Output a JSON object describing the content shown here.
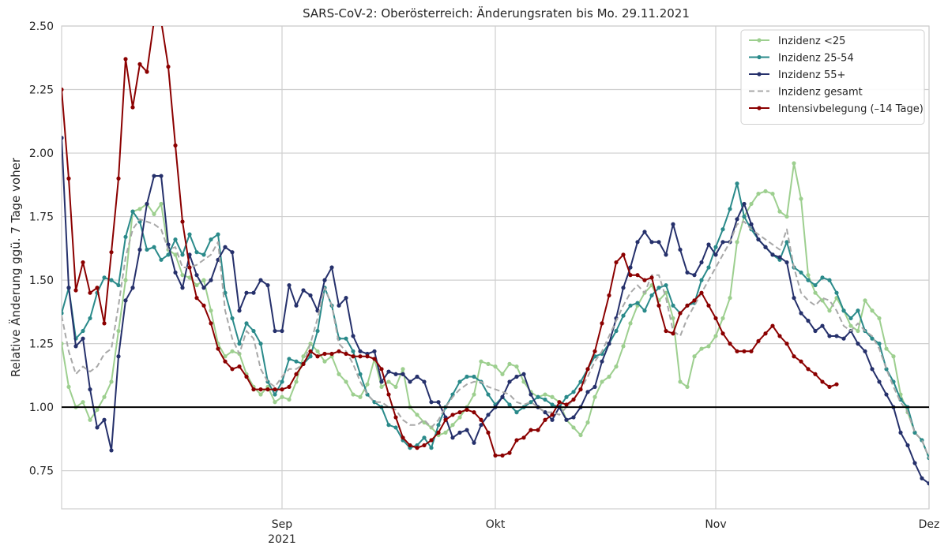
{
  "chart_data": {
    "type": "line",
    "title": "SARS-CoV-2: Oberösterreich: Änderungsraten bis Mo. 29.11.2021",
    "ylabel": "Relative Änderung ggü. 7 Tage voher",
    "xlabel": "",
    "x_start": "2021-08-01",
    "x_end": "2021-12-01",
    "xlim": [
      "2021-08-01",
      "2021-12-01"
    ],
    "ylim": [
      0.6,
      2.5
    ],
    "yticks": [
      0.75,
      1.0,
      1.25,
      1.5,
      1.75,
      2.0,
      2.25,
      2.5
    ],
    "ytick_labels": [
      "0.75",
      "1.00",
      "1.25",
      "1.50",
      "1.75",
      "2.00",
      "2.25",
      "2.50"
    ],
    "xticks": [
      {
        "date": "2021-09-01",
        "label": "Sep",
        "sublabel": "2021"
      },
      {
        "date": "2021-10-01",
        "label": "Okt",
        "sublabel": ""
      },
      {
        "date": "2021-11-01",
        "label": "Nov",
        "sublabel": ""
      },
      {
        "date": "2021-12-01",
        "label": "Dez",
        "sublabel": ""
      }
    ],
    "grid": true,
    "reference_line": 1.0,
    "legend_position": "top-right",
    "series": [
      {
        "name": "Inzidenz <25",
        "color": "#9dcf8f",
        "style": "solid-markers",
        "start": "2021-08-01",
        "values": [
          1.25,
          1.08,
          1.0,
          1.02,
          0.95,
          0.99,
          1.04,
          1.1,
          1.3,
          1.5,
          1.77,
          1.78,
          1.8,
          1.76,
          1.8,
          1.62,
          1.6,
          1.52,
          1.51,
          1.48,
          1.5,
          1.38,
          1.25,
          1.2,
          1.22,
          1.21,
          1.13,
          1.08,
          1.05,
          1.08,
          1.02,
          1.04,
          1.03,
          1.1,
          1.2,
          1.25,
          1.22,
          1.18,
          1.2,
          1.13,
          1.1,
          1.05,
          1.04,
          1.09,
          1.19,
          1.08,
          1.1,
          1.08,
          1.15,
          1.0,
          0.97,
          0.94,
          0.92,
          0.89,
          0.9,
          0.93,
          0.96,
          1.0,
          1.05,
          1.18,
          1.17,
          1.16,
          1.13,
          1.17,
          1.16,
          1.1,
          1.06,
          1.04,
          1.05,
          1.04,
          1.02,
          0.95,
          0.92,
          0.89,
          0.94,
          1.04,
          1.1,
          1.12,
          1.16,
          1.24,
          1.33,
          1.4,
          1.45,
          1.48,
          1.42,
          1.45,
          1.35,
          1.1,
          1.08,
          1.2,
          1.23,
          1.24,
          1.28,
          1.35,
          1.43,
          1.65,
          1.75,
          1.8,
          1.84,
          1.85,
          1.84,
          1.77,
          1.75,
          1.96,
          1.82,
          1.52,
          1.45,
          1.42,
          1.38,
          1.43,
          1.38,
          1.32,
          1.3,
          1.42,
          1.38,
          1.35,
          1.23,
          1.2,
          1.05,
          0.98,
          0.9,
          0.87,
          0.8,
          0.75,
          0.73
        ]
      },
      {
        "name": "Inzidenz 25-54",
        "color": "#2a8a8a",
        "style": "solid-markers",
        "start": "2021-08-01",
        "values": [
          1.37,
          1.47,
          1.27,
          1.3,
          1.35,
          1.45,
          1.51,
          1.5,
          1.48,
          1.67,
          1.77,
          1.73,
          1.62,
          1.63,
          1.58,
          1.6,
          1.66,
          1.6,
          1.68,
          1.61,
          1.6,
          1.66,
          1.68,
          1.45,
          1.35,
          1.25,
          1.33,
          1.3,
          1.25,
          1.1,
          1.05,
          1.1,
          1.19,
          1.18,
          1.17,
          1.2,
          1.3,
          1.47,
          1.4,
          1.27,
          1.27,
          1.22,
          1.13,
          1.05,
          1.02,
          1.0,
          0.93,
          0.92,
          0.87,
          0.84,
          0.85,
          0.88,
          0.84,
          0.93,
          1.0,
          1.05,
          1.1,
          1.12,
          1.12,
          1.1,
          1.05,
          1.01,
          1.04,
          1.01,
          0.98,
          1.0,
          1.02,
          1.04,
          1.03,
          1.01,
          1.0,
          1.04,
          1.06,
          1.1,
          1.15,
          1.2,
          1.21,
          1.25,
          1.3,
          1.36,
          1.4,
          1.41,
          1.38,
          1.44,
          1.47,
          1.48,
          1.4,
          1.37,
          1.4,
          1.41,
          1.5,
          1.55,
          1.63,
          1.7,
          1.78,
          1.88,
          1.75,
          1.7,
          1.66,
          1.63,
          1.6,
          1.58,
          1.65,
          1.55,
          1.53,
          1.5,
          1.48,
          1.51,
          1.5,
          1.45,
          1.38,
          1.35,
          1.38,
          1.3,
          1.27,
          1.25,
          1.15,
          1.1,
          1.03,
          1.0,
          0.9,
          0.87,
          0.8,
          0.75,
          0.72
        ]
      },
      {
        "name": "Inzidenz 55+",
        "color": "#25306b",
        "style": "solid-markers",
        "start": "2021-08-01",
        "values": [
          2.06,
          1.47,
          1.24,
          1.27,
          1.07,
          0.92,
          0.95,
          0.83,
          1.2,
          1.42,
          1.47,
          1.62,
          1.8,
          1.91,
          1.91,
          1.64,
          1.53,
          1.47,
          1.6,
          1.52,
          1.47,
          1.5,
          1.58,
          1.63,
          1.61,
          1.38,
          1.45,
          1.45,
          1.5,
          1.48,
          1.3,
          1.3,
          1.48,
          1.4,
          1.46,
          1.44,
          1.38,
          1.5,
          1.55,
          1.4,
          1.43,
          1.28,
          1.22,
          1.21,
          1.22,
          1.1,
          1.14,
          1.13,
          1.13,
          1.1,
          1.12,
          1.1,
          1.02,
          1.02,
          0.96,
          0.88,
          0.9,
          0.91,
          0.86,
          0.93,
          0.97,
          1.0,
          1.04,
          1.1,
          1.12,
          1.13,
          1.05,
          1.0,
          0.98,
          0.95,
          1.0,
          0.95,
          0.96,
          1.0,
          1.06,
          1.08,
          1.18,
          1.25,
          1.35,
          1.47,
          1.55,
          1.65,
          1.69,
          1.65,
          1.65,
          1.6,
          1.72,
          1.62,
          1.53,
          1.52,
          1.57,
          1.64,
          1.6,
          1.65,
          1.65,
          1.74,
          1.8,
          1.72,
          1.66,
          1.63,
          1.6,
          1.59,
          1.57,
          1.43,
          1.37,
          1.34,
          1.3,
          1.32,
          1.28,
          1.28,
          1.27,
          1.3,
          1.25,
          1.22,
          1.15,
          1.1,
          1.05,
          1.0,
          0.9,
          0.85,
          0.78,
          0.72,
          0.7
        ]
      },
      {
        "name": "Inzidenz gesamt",
        "color": "#a8a8a8",
        "style": "dashed",
        "start": "2021-08-01",
        "values": [
          1.36,
          1.22,
          1.13,
          1.16,
          1.14,
          1.16,
          1.21,
          1.23,
          1.4,
          1.59,
          1.7,
          1.74,
          1.73,
          1.72,
          1.7,
          1.62,
          1.63,
          1.55,
          1.55,
          1.56,
          1.58,
          1.6,
          1.65,
          1.38,
          1.27,
          1.21,
          1.3,
          1.27,
          1.15,
          1.1,
          1.08,
          1.12,
          1.15,
          1.15,
          1.17,
          1.25,
          1.35,
          1.47,
          1.4,
          1.25,
          1.22,
          1.17,
          1.1,
          1.05,
          1.02,
          1.02,
          1.0,
          0.99,
          0.95,
          0.93,
          0.93,
          0.95,
          0.92,
          0.95,
          1.0,
          1.04,
          1.07,
          1.09,
          1.1,
          1.1,
          1.08,
          1.07,
          1.06,
          1.05,
          1.02,
          1.01,
          1.02,
          1.0,
          0.98,
          0.98,
          0.97,
          1.0,
          1.03,
          1.07,
          1.12,
          1.18,
          1.22,
          1.28,
          1.34,
          1.4,
          1.45,
          1.48,
          1.45,
          1.52,
          1.52,
          1.43,
          1.3,
          1.28,
          1.35,
          1.4,
          1.45,
          1.5,
          1.55,
          1.6,
          1.65,
          1.72,
          1.73,
          1.7,
          1.68,
          1.66,
          1.64,
          1.62,
          1.7,
          1.55,
          1.45,
          1.42,
          1.4,
          1.43,
          1.42,
          1.38,
          1.32,
          1.3,
          1.33,
          1.3,
          1.28,
          1.23,
          1.15,
          1.08,
          1.02,
          0.98,
          0.9,
          0.87,
          0.8,
          0.75,
          0.73
        ]
      },
      {
        "name": "Intensivbelegung (–14 Tage)",
        "color": "#8b0000",
        "style": "solid-markers",
        "start": "2021-08-01",
        "values": [
          2.25,
          1.9,
          1.46,
          1.57,
          1.45,
          1.47,
          1.33,
          1.61,
          1.9,
          2.37,
          2.18,
          2.35,
          2.32,
          2.52,
          2.52,
          2.34,
          2.03,
          1.73,
          1.55,
          1.43,
          1.4,
          1.33,
          1.23,
          1.18,
          1.15,
          1.16,
          1.12,
          1.07,
          1.07,
          1.07,
          1.07,
          1.07,
          1.08,
          1.13,
          1.17,
          1.22,
          1.2,
          1.21,
          1.21,
          1.22,
          1.21,
          1.2,
          1.2,
          1.2,
          1.19,
          1.15,
          1.05,
          0.96,
          0.88,
          0.85,
          0.84,
          0.85,
          0.87,
          0.9,
          0.95,
          0.97,
          0.98,
          0.99,
          0.98,
          0.95,
          0.9,
          0.81,
          0.81,
          0.82,
          0.87,
          0.88,
          0.91,
          0.91,
          0.95,
          0.97,
          1.02,
          1.01,
          1.03,
          1.07,
          1.15,
          1.22,
          1.33,
          1.44,
          1.57,
          1.6,
          1.52,
          1.52,
          1.5,
          1.51,
          1.4,
          1.3,
          1.29,
          1.37,
          1.4,
          1.42,
          1.45,
          1.4,
          1.35,
          1.29,
          1.25,
          1.22,
          1.22,
          1.22,
          1.26,
          1.29,
          1.32,
          1.28,
          1.25,
          1.2,
          1.18,
          1.15,
          1.13,
          1.1,
          1.08,
          1.09
        ]
      }
    ]
  }
}
